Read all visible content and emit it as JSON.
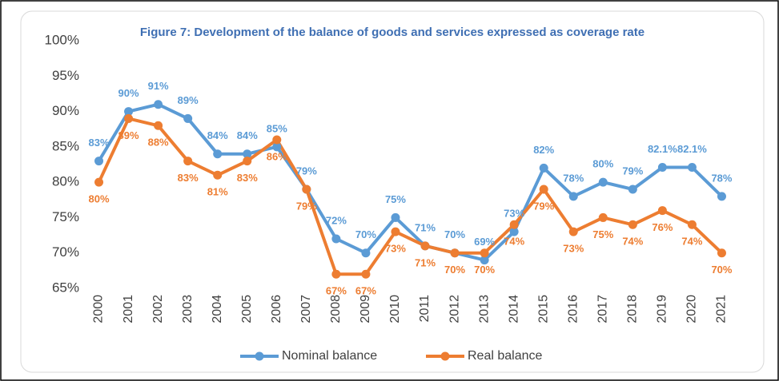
{
  "chart_data": {
    "type": "line",
    "title": "Figure 7: Development of the balance of goods and services expressed as coverage rate",
    "categories": [
      "2000",
      "2001",
      "2002",
      "2003",
      "2004",
      "2005",
      "2006",
      "2007",
      "2008",
      "2009",
      "2010",
      "2011",
      "2012",
      "2013",
      "2014",
      "2015",
      "2016",
      "2017",
      "2018",
      "2019",
      "2020",
      "2021"
    ],
    "series": [
      {
        "name": "Nominal balance",
        "color": "#5b9bd5",
        "values": [
          83,
          90,
          91,
          89,
          84,
          84,
          85,
          79,
          72,
          70,
          75,
          71,
          70,
          69,
          73,
          82,
          78,
          80,
          79,
          82.1,
          82.1,
          78
        ],
        "value_labels": [
          "83%",
          "90%",
          "91%",
          "89%",
          "84%",
          "84%",
          "85%",
          "79%",
          "72%",
          "70%",
          "75%",
          "71%",
          "70%",
          "69%",
          "73%",
          "82%",
          "78%",
          "80%",
          "79%",
          "82.1%",
          "82.1%",
          "78%"
        ]
      },
      {
        "name": "Real balance",
        "color": "#ed7d31",
        "values": [
          80,
          89,
          88,
          83,
          81,
          83,
          86,
          79,
          67,
          67,
          73,
          71,
          70,
          70,
          74,
          79,
          73,
          75,
          74,
          76,
          74,
          70
        ],
        "value_labels": [
          "80%",
          "89%",
          "88%",
          "83%",
          "81%",
          "83%",
          "86%",
          "79%",
          "67%",
          "67%",
          "73%",
          "71%",
          "70%",
          "70%",
          "74%",
          "79%",
          "73%",
          "75%",
          "74%",
          "76%",
          "74%",
          "70%"
        ]
      }
    ],
    "ylim": [
      65,
      100
    ],
    "yticks": [
      {
        "value": 65,
        "label": "65%"
      },
      {
        "value": 70,
        "label": "70%"
      },
      {
        "value": 75,
        "label": "75%"
      },
      {
        "value": 80,
        "label": "80%"
      },
      {
        "value": 85,
        "label": "85%"
      },
      {
        "value": 90,
        "label": "90%"
      },
      {
        "value": 95,
        "label": "95%"
      },
      {
        "value": 100,
        "label": "100%"
      }
    ],
    "grid": false,
    "legend": "bottom"
  }
}
